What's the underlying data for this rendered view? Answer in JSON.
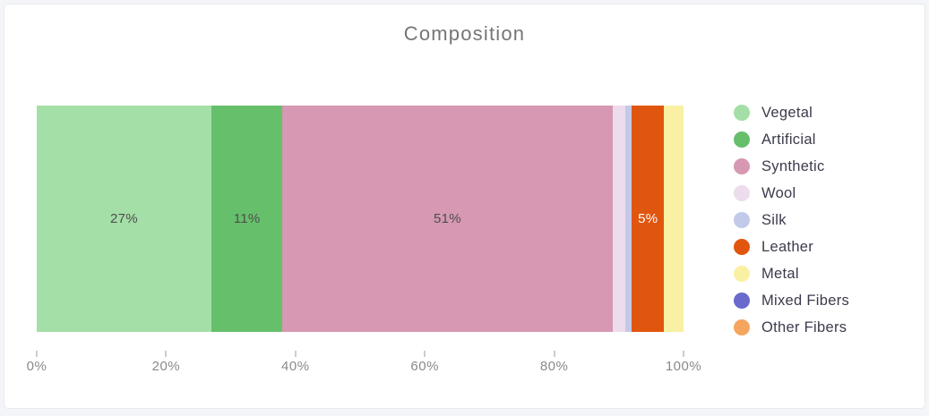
{
  "page": {
    "background_color": "#f4f5f8",
    "card_background": "#ffffff",
    "card_border_color": "#e9e9f0"
  },
  "chart_data": {
    "type": "bar",
    "stacked": true,
    "orientation": "horizontal",
    "title": "Composition",
    "title_color": "#757575",
    "categories": [
      "Vegetal",
      "Artificial",
      "Synthetic",
      "Wool",
      "Silk",
      "Leather",
      "Metal",
      "Mixed Fibers",
      "Other Fibers"
    ],
    "values": [
      27,
      11,
      51,
      2,
      1,
      5,
      3,
      0,
      0
    ],
    "colors": [
      "#a3dfa6",
      "#66bf6b",
      "#d698b2",
      "#ecdcec",
      "#c3c9e9",
      "#e1560f",
      "#faf0a3",
      "#6a6acd",
      "#f6a55f"
    ],
    "segment_labels": [
      "27%",
      "11%",
      "51%",
      "",
      "",
      "5%",
      "",
      "",
      ""
    ],
    "segment_label_colors": [
      "#4e4e4e",
      "#4e4e4e",
      "#4e4e4e",
      "",
      "",
      "#ffffff",
      "",
      "",
      ""
    ],
    "x_ticks": [
      "0%",
      "20%",
      "40%",
      "60%",
      "80%",
      "100%"
    ],
    "x_tick_values": [
      0,
      20,
      40,
      60,
      80,
      100
    ],
    "xlim": [
      0,
      100
    ],
    "grid": false,
    "legend_position": "right",
    "legend_text_color": "#3b3b4d",
    "axis_label_color": "#8a8a8a"
  }
}
